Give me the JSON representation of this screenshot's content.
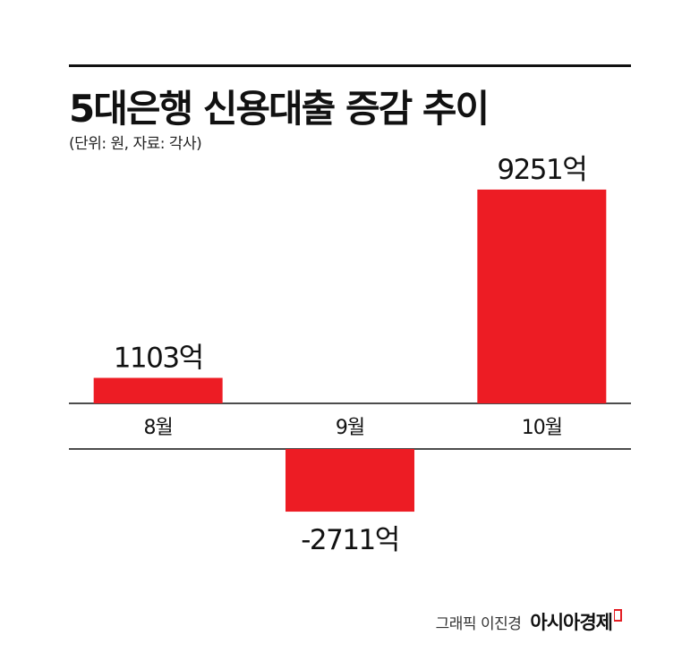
{
  "header": {
    "title": "5대은행 신용대출 증감 추이",
    "subtitle": "(단위: 원, 자료: 각사)"
  },
  "footer": {
    "credit": "그래픽 이진경",
    "brand": "아시아경제"
  },
  "colors": {
    "bar": "#ed1c24",
    "axis": "#111111",
    "text": "#111111"
  },
  "chart_data": {
    "type": "bar",
    "title": "5대은행 신용대출 증감 추이",
    "subtitle": "(단위: 원, 자료: 각사)",
    "categories": [
      "8월",
      "9월",
      "10월"
    ],
    "values": [
      1103,
      -2711,
      9251
    ],
    "data_labels": [
      "1103억",
      "-2711억",
      "9251억"
    ],
    "unit": "억",
    "grid": false,
    "legend": "none"
  }
}
